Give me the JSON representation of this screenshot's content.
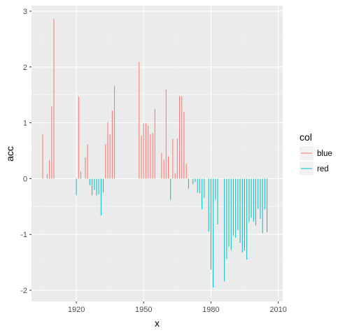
{
  "chart_data": {
    "type": "bar",
    "xlabel": "x",
    "ylabel": "acc",
    "xlim": [
      1900,
      2012
    ],
    "ylim": [
      -2.2,
      3.1
    ],
    "x_ticks": [
      1920,
      1950,
      1980,
      2010
    ],
    "y_ticks": [
      -2,
      -1,
      0,
      1,
      2,
      3
    ],
    "grid": true,
    "legend_title": "col",
    "legend_position": "right",
    "series": [
      {
        "name": "blue",
        "color": "#F8766D",
        "points": [
          [
            1905,
            0.79
          ],
          [
            1907,
            0.08
          ],
          [
            1908,
            0.33
          ],
          [
            1909,
            1.29
          ],
          [
            1910,
            2.86
          ],
          [
            1921,
            1.47
          ],
          [
            1922,
            0.13
          ],
          [
            1924,
            0.38
          ],
          [
            1925,
            0.61
          ],
          [
            1933,
            0.62
          ],
          [
            1934,
            1.01
          ],
          [
            1935,
            0.79
          ],
          [
            1936,
            1.22
          ],
          [
            1937,
            1.66
          ],
          [
            1948,
            2.09
          ],
          [
            1949,
            0.77
          ],
          [
            1950,
            0.99
          ],
          [
            1951,
            0.99
          ],
          [
            1952,
            0.95
          ],
          [
            1953,
            0.8
          ],
          [
            1954,
            0.82
          ],
          [
            1955,
            1.25
          ],
          [
            1958,
            0.46
          ],
          [
            1959,
            0.34
          ],
          [
            1960,
            1.6
          ],
          [
            1961,
            0.4
          ],
          [
            1963,
            0.71
          ],
          [
            1964,
            0.1
          ],
          [
            1965,
            0.72
          ],
          [
            1966,
            1.48
          ],
          [
            1967,
            1.48
          ],
          [
            1968,
            1.2
          ],
          [
            1969,
            0.27
          ]
        ]
      },
      {
        "name": "red",
        "color": "#00BFC4",
        "points": [
          [
            1920,
            -0.3
          ],
          [
            1926,
            -0.12
          ],
          [
            1927,
            -0.3
          ],
          [
            1928,
            -0.2
          ],
          [
            1929,
            -0.3
          ],
          [
            1930,
            -0.28
          ],
          [
            1931,
            -0.66
          ],
          [
            1932,
            -0.25
          ],
          [
            1962,
            -0.38
          ],
          [
            1970,
            -0.18
          ],
          [
            1972,
            -0.1
          ],
          [
            1973,
            -0.06
          ],
          [
            1974,
            -0.25
          ],
          [
            1975,
            -0.26
          ],
          [
            1976,
            -0.55
          ],
          [
            1977,
            -0.35
          ],
          [
            1979,
            -0.95
          ],
          [
            1980,
            -1.63
          ],
          [
            1981,
            -1.95
          ],
          [
            1982,
            -0.38
          ],
          [
            1983,
            -0.82
          ],
          [
            1986,
            -1.84
          ],
          [
            1987,
            -1.44
          ],
          [
            1988,
            -1.22
          ],
          [
            1989,
            -1.28
          ],
          [
            1990,
            -1.02
          ],
          [
            1991,
            -1.06
          ],
          [
            1992,
            -0.92
          ],
          [
            1993,
            -1.15
          ],
          [
            1994,
            -1.32
          ],
          [
            1995,
            -1.29
          ],
          [
            1996,
            -1.45
          ],
          [
            1997,
            -0.78
          ],
          [
            1998,
            -0.7
          ],
          [
            1999,
            -0.77
          ],
          [
            2000,
            -0.84
          ],
          [
            2001,
            -0.54
          ],
          [
            2002,
            -0.72
          ],
          [
            2003,
            -0.98
          ],
          [
            2004,
            -0.55
          ],
          [
            2005,
            -0.96
          ]
        ]
      }
    ]
  }
}
